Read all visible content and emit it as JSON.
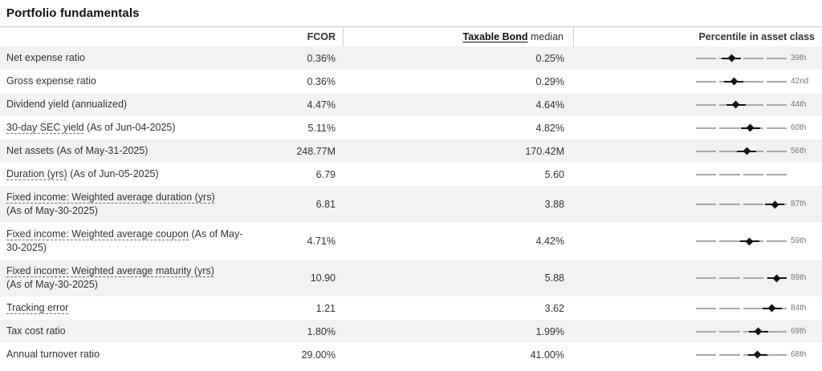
{
  "title": "Portfolio fundamentals",
  "colors": {
    "row_alt_background": "#f2f2f2",
    "table_border": "#c9c9c9",
    "track_line": "#a9a9a9",
    "marker": "#141414",
    "percentile_label_text": "#767676"
  },
  "table": {
    "header": {
      "fund": "FCOR",
      "median_link": "Taxable Bond",
      "median_suffix": " median",
      "percentile": "Percentile in asset class"
    },
    "rows": [
      {
        "term": "",
        "rest": "Net expense ratio",
        "fund": "0.36%",
        "median": "0.25%",
        "pct": 39,
        "pct_label": "39th"
      },
      {
        "term": "",
        "rest": "Gross expense ratio",
        "fund": "0.36%",
        "median": "0.29%",
        "pct": 42,
        "pct_label": "42nd"
      },
      {
        "term": "",
        "rest": "Dividend yield (annualized)",
        "fund": "4.47%",
        "median": "4.64%",
        "pct": 44,
        "pct_label": "44th"
      },
      {
        "term": "30-day SEC yield",
        "rest": " (As of Jun-04-2025)",
        "fund": "5.11%",
        "median": "4.82%",
        "pct": 60,
        "pct_label": "60th"
      },
      {
        "term": "",
        "rest": "Net assets (As of May-31-2025)",
        "fund": "248.77M",
        "median": "170.42M",
        "pct": 56,
        "pct_label": "56th"
      },
      {
        "term": "Duration (yrs)",
        "rest": " (As of Jun-05-2025)",
        "fund": "6.79",
        "median": "5.60",
        "pct": null,
        "pct_label": null
      },
      {
        "term": "Fixed income: Weighted average duration (yrs)",
        "rest": "(As of May-30-2025)",
        "fund": "6.81",
        "median": "3.88",
        "pct": 87,
        "pct_label": "87th"
      },
      {
        "term": "Fixed income: Weighted average coupon",
        "rest": " (As of May-30-2025)",
        "fund": "4.71%",
        "median": "4.42%",
        "pct": 59,
        "pct_label": "59th"
      },
      {
        "term": "Fixed income: Weighted average maturity (yrs)",
        "rest": "(As of May-30-2025)",
        "fund": "10.90",
        "median": "5.88",
        "pct": 89,
        "pct_label": "89th"
      },
      {
        "term": "Tracking error",
        "rest": "",
        "fund": "1.21",
        "median": "3.62",
        "pct": 84,
        "pct_label": "84th"
      },
      {
        "term": "",
        "rest": "Tax cost ratio",
        "fund": "1.80%",
        "median": "1.99%",
        "pct": 69,
        "pct_label": "69th"
      },
      {
        "term": "",
        "rest": "Annual turnover ratio",
        "fund": "29.00%",
        "median": "41.00%",
        "pct": 68,
        "pct_label": "68th"
      }
    ]
  }
}
